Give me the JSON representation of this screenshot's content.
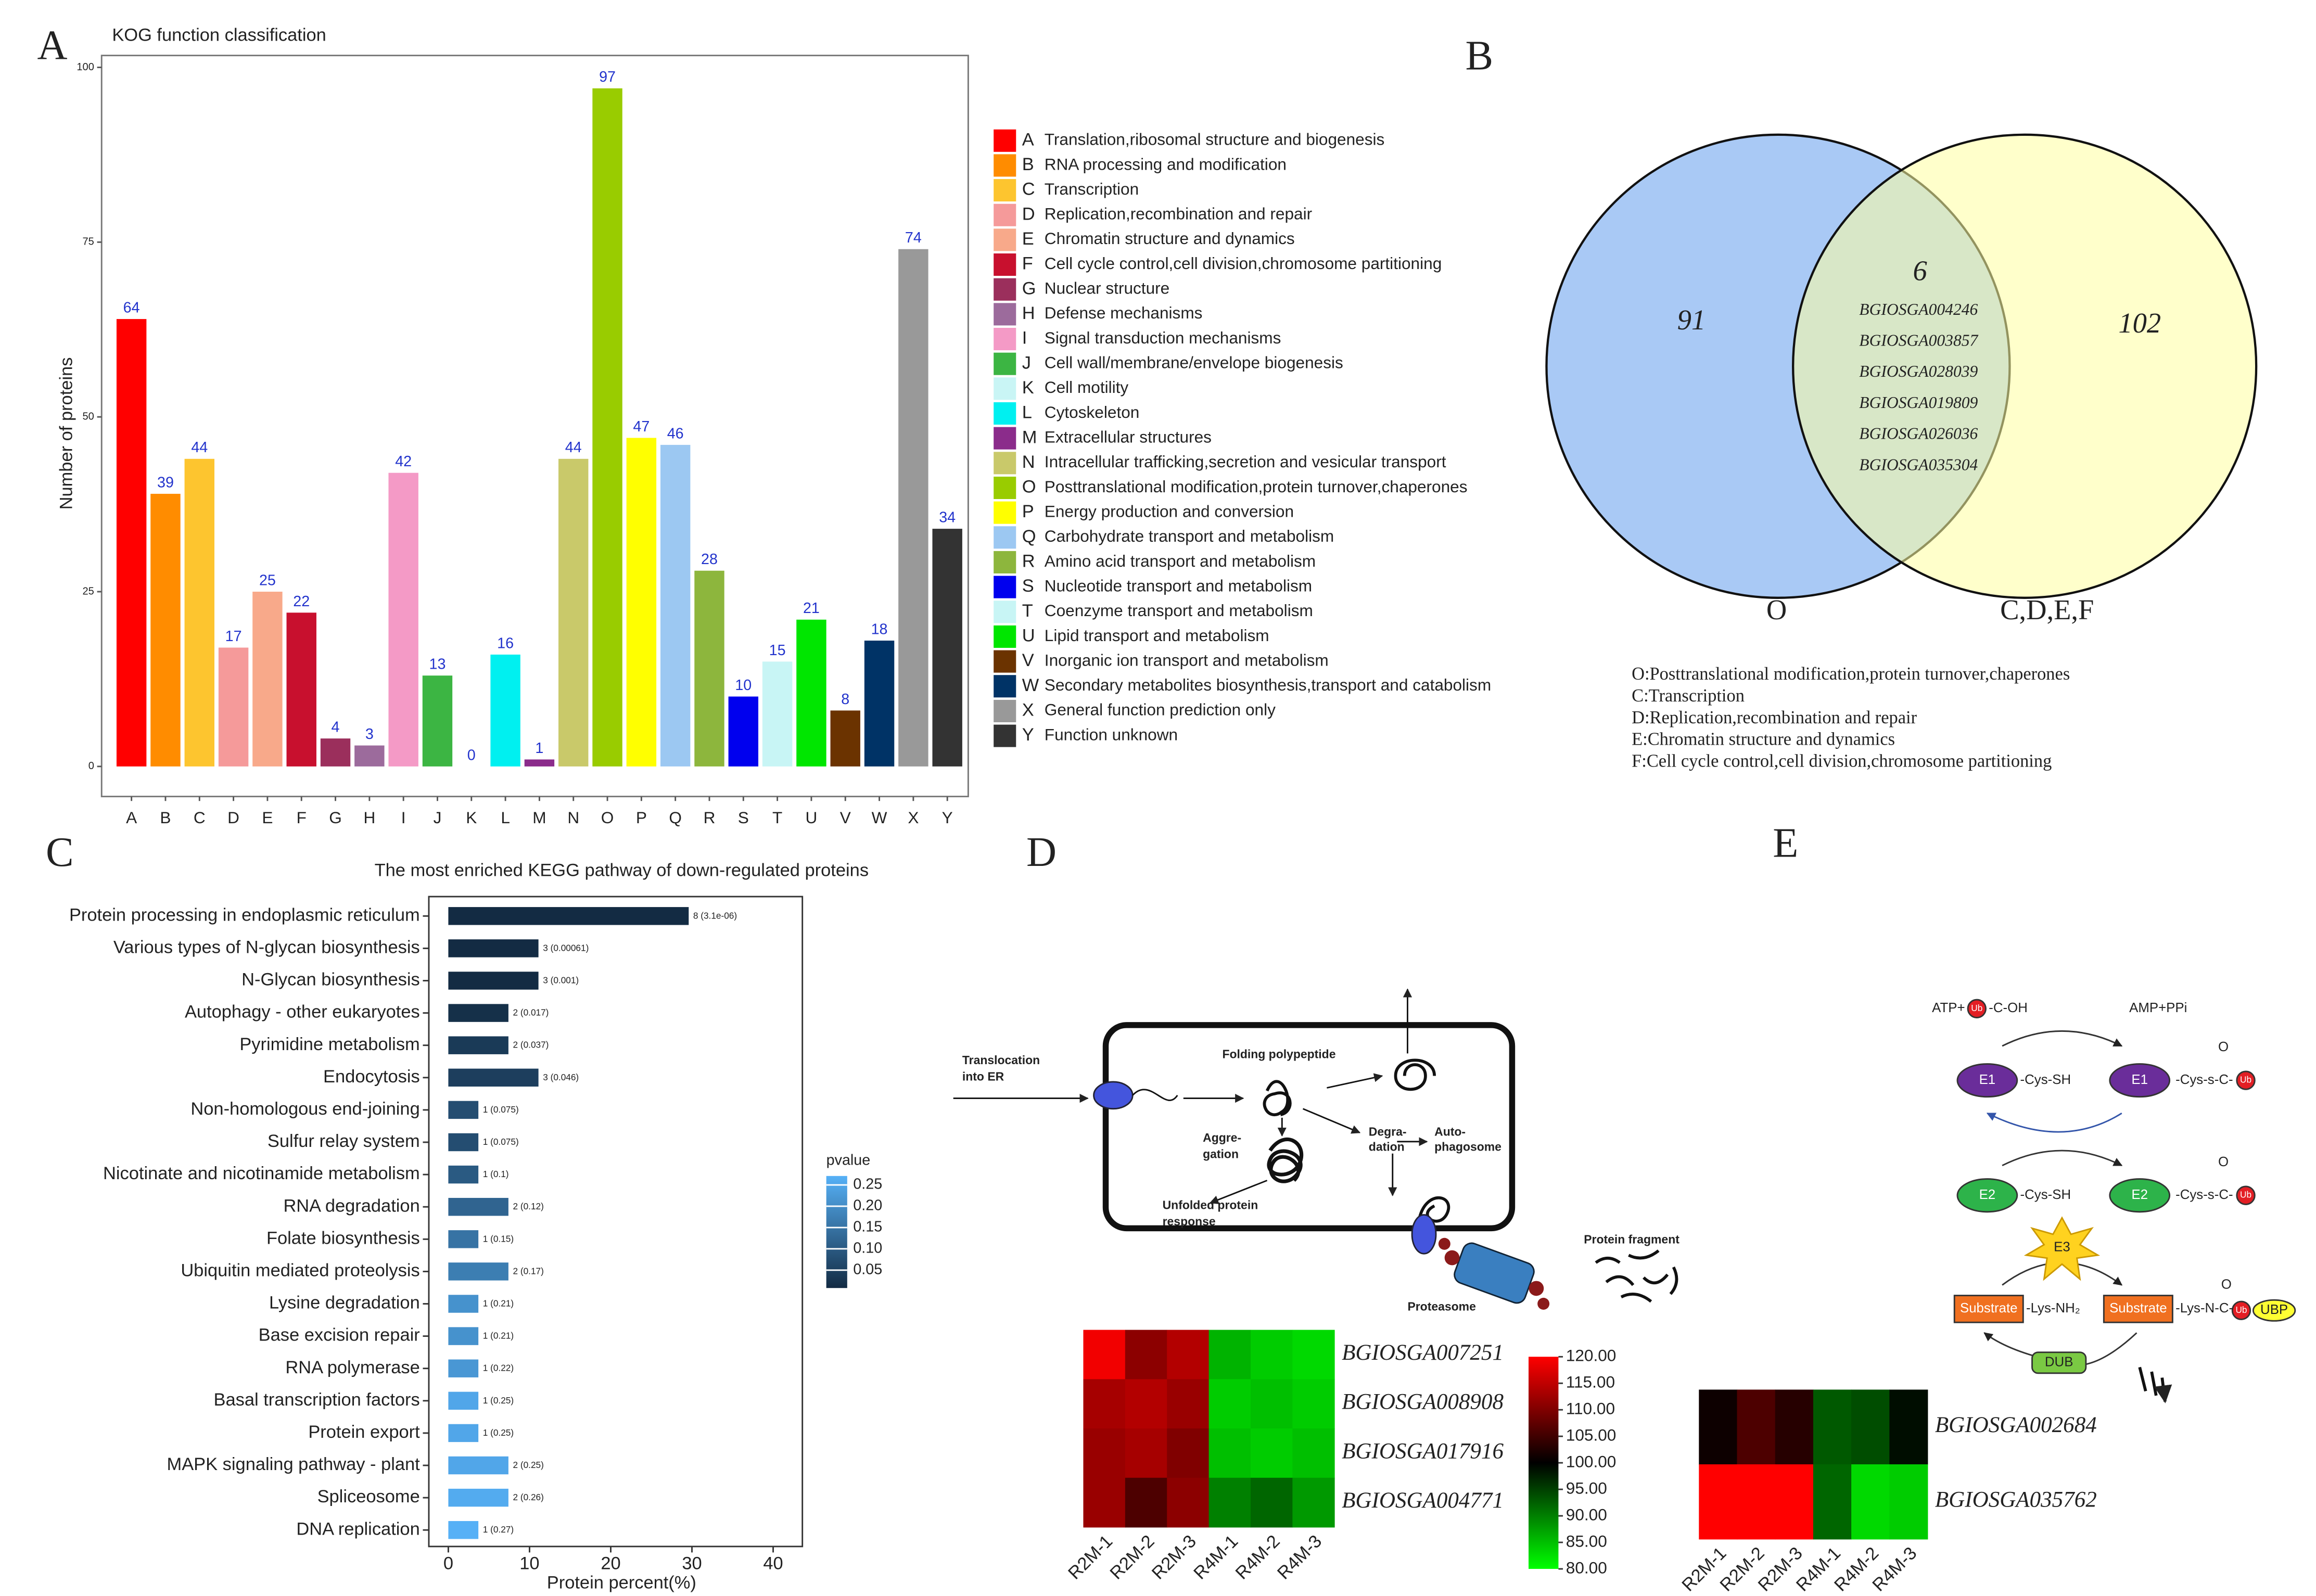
{
  "panel_labels": [
    "A",
    "B",
    "C",
    "D",
    "E"
  ],
  "chart_data": [
    {
      "type": "bar",
      "title": "KOG function classification",
      "ylabel": "Number of proteins",
      "categories": [
        "A",
        "B",
        "C",
        "D",
        "E",
        "F",
        "G",
        "H",
        "I",
        "J",
        "K",
        "L",
        "M",
        "N",
        "O",
        "P",
        "Q",
        "R",
        "S",
        "T",
        "U",
        "V",
        "W",
        "X",
        "Y"
      ],
      "values": [
        64,
        39,
        44,
        17,
        25,
        22,
        4,
        3,
        42,
        13,
        0,
        16,
        1,
        44,
        97,
        47,
        46,
        28,
        10,
        15,
        21,
        8,
        18,
        74,
        34
      ],
      "colors": [
        "#ff0000",
        "#ff8c00",
        "#fdc52f",
        "#f59a9a",
        "#f8a98a",
        "#c8102e",
        "#9b2f5c",
        "#9c6b9c",
        "#f49ac6",
        "#3cb543",
        "#c9f5f5",
        "#00f0f0",
        "#8b2c8b",
        "#c9c96a",
        "#99cc00",
        "#ffff00",
        "#9cc8f2",
        "#8db63d",
        "#0000ee",
        "#c8f5f5",
        "#00e600",
        "#6b3300",
        "#003366",
        "#999999",
        "#333333"
      ],
      "descriptions": [
        "Translation,ribosomal structure and biogenesis",
        "RNA processing and modification",
        "Transcription",
        "Replication,recombination and repair",
        "Chromatin structure and dynamics",
        "Cell cycle control,cell division,chromosome partitioning",
        "Nuclear structure",
        "Defense mechanisms",
        "Signal transduction mechanisms",
        "Cell wall/membrane/envelope biogenesis",
        "Cell motility",
        "Cytoskeleton",
        "Extracellular structures",
        "Intracellular trafficking,secretion and vesicular transport",
        "Posttranslational modification,protein turnover,chaperones",
        "Energy production and conversion",
        "Carbohydrate transport and metabolism",
        "Amino acid transport and metabolism",
        "Nucleotide transport and metabolism",
        "Coenzyme transport and metabolism",
        "Lipid transport and metabolism",
        "Inorganic ion transport and metabolism",
        "Secondary metabolites biosynthesis,transport and catabolism",
        "General function prediction only",
        "Function unknown"
      ],
      "ylim": [
        -4.3,
        101.7
      ],
      "yticks": [
        0,
        25,
        50,
        75,
        100
      ],
      "value_label_color": "#2233cc"
    },
    {
      "type": "venn",
      "sets": [
        "O",
        "C,D,E,F"
      ],
      "only_a": 91,
      "only_b": 102,
      "both": 6,
      "shared_items": [
        "BGIOSGA004246",
        "BGIOSGA003857",
        "BGIOSGA028039",
        "BGIOSGA019809",
        "BGIOSGA026036",
        "BGIOSGA035304"
      ],
      "colors": [
        "#a9c9f5",
        "#ffffa0"
      ],
      "notes": [
        "O:Posttranslational modification,protein turnover,chaperones",
        "C:Transcription",
        "D:Replication,recombination and repair",
        "E:Chromatin structure and dynamics",
        "F:Cell cycle control,cell division,chromosome partitioning"
      ]
    },
    {
      "type": "hbar",
      "title": "The most enriched KEGG pathway of down-regulated proteins",
      "xlabel": "Protein percent(%)",
      "categories": [
        "Protein processing in endoplasmic reticulum",
        "Various types of N-glycan biosynthesis",
        "N-Glycan biosynthesis",
        "Autophagy - other eukaryotes",
        "Pyrimidine metabolism",
        "Endocytosis",
        "Non-homologous end-joining",
        "Sulfur relay system",
        "Nicotinate and nicotinamide metabolism",
        "RNA degradation",
        "Folate biosynthesis",
        "Ubiquitin mediated proteolysis",
        "Lysine degradation",
        "Base excision repair",
        "RNA polymerase",
        "Basal transcription factors",
        "Protein export",
        "MAPK signaling pathway - plant",
        "Spliceosome",
        "DNA replication"
      ],
      "values": [
        29.6,
        11.1,
        11.1,
        7.4,
        7.4,
        11.1,
        3.7,
        3.7,
        3.7,
        7.4,
        3.7,
        7.4,
        3.7,
        3.7,
        3.7,
        3.7,
        3.7,
        7.4,
        7.4,
        3.7
      ],
      "counts": [
        8,
        3,
        3,
        2,
        2,
        3,
        1,
        1,
        1,
        2,
        1,
        2,
        1,
        1,
        1,
        1,
        1,
        2,
        2,
        1
      ],
      "pvalue": [
        3.1e-06,
        0.00061,
        0.001,
        0.017,
        0.037,
        0.046,
        0.075,
        0.075,
        0.1,
        0.12,
        0.15,
        0.17,
        0.21,
        0.21,
        0.22,
        0.25,
        0.25,
        0.25,
        0.26,
        0.27
      ],
      "pvalue_labels": [
        "(3.1e-06)",
        "(0.00061)",
        "(0.001)",
        "(0.017)",
        "(0.037)",
        "(0.046)",
        "(0.075)",
        "(0.075)",
        "(0.1)",
        "(0.12)",
        "(0.15)",
        "(0.17)",
        "(0.21)",
        "(0.21)",
        "(0.22)",
        "(0.25)",
        "(0.25)",
        "(0.25)",
        "(0.26)",
        "(0.27)"
      ],
      "xlim": [
        -2.4,
        43.6
      ],
      "xticks": [
        0,
        10,
        20,
        30,
        40
      ],
      "colorbar": {
        "title": "pvalue",
        "clim": [
          0.008,
          0.271
        ],
        "ticks": [
          {
            "value": 0.25,
            "label": "0.25"
          },
          {
            "value": 0.2,
            "label": "0.20"
          },
          {
            "value": 0.15,
            "label": "0.15"
          },
          {
            "value": 0.1,
            "label": "0.10"
          },
          {
            "value": 0.05,
            "label": "0.05"
          }
        ],
        "colors": [
          "#132b43",
          "#56b1f7"
        ]
      }
    },
    {
      "type": "heatmap",
      "rows": [
        "BGIOSGA007251",
        "BGIOSGA008908",
        "BGIOSGA017916",
        "BGIOSGA004771"
      ],
      "columns": [
        "R2M-1",
        "R2M-2",
        "R2M-3",
        "R4M-1",
        "R4M-2",
        "R4M-3"
      ],
      "values": [
        [
          119,
          111,
          114,
          86,
          84,
          83
        ],
        [
          113,
          114,
          112,
          84,
          85,
          84
        ],
        [
          112,
          113,
          110,
          85,
          84,
          85
        ],
        [
          112,
          106,
          111,
          90,
          92,
          88
        ]
      ],
      "clim": [
        80,
        120
      ],
      "colors": [
        "#00ff00",
        "#000000",
        "#ff0000"
      ],
      "cticks": [
        {
          "value": 120,
          "label": "120.00"
        },
        {
          "value": 115,
          "label": "115.00"
        },
        {
          "value": 110,
          "label": "110.00"
        },
        {
          "value": 105,
          "label": "105.00"
        },
        {
          "value": 100,
          "label": "100.00"
        },
        {
          "value": 95,
          "label": "95.00"
        },
        {
          "value": 90,
          "label": "90.00"
        },
        {
          "value": 85,
          "label": "85.00"
        },
        {
          "value": 80,
          "label": "80.00"
        }
      ]
    },
    {
      "type": "heatmap",
      "rows": [
        "BGIOSGA002684",
        "BGIOSGA035762"
      ],
      "columns": [
        "R2M-1",
        "R2M-2",
        "R2M-3",
        "R4M-1",
        "R4M-2",
        "R4M-3"
      ],
      "values": [
        [
          101,
          106,
          103,
          93,
          94,
          99
        ],
        [
          120,
          120,
          120,
          92,
          83,
          84
        ]
      ],
      "clim": [
        80,
        120
      ],
      "colors": [
        "#00ff00",
        "#000000",
        "#ff0000"
      ]
    }
  ],
  "diagrams": {
    "D": {
      "labels": [
        "Translocation",
        "into ER",
        "Folding polypeptide",
        "Aggre-",
        "gation",
        "Degra-",
        "dation",
        "Auto-",
        "phagosome",
        "Unfolded  protein",
        "response",
        "Protein fragment",
        "Proteasome"
      ]
    },
    "E": {
      "labels": [
        "ATP+",
        "Ub",
        "-C-OH",
        "AMP+PPi",
        "E1",
        "-Cys-SH",
        "-Cys-s-C-",
        "E2",
        "E3",
        "Substrate",
        "-Lys-NH₂",
        "-Lys-N-C-",
        "UBP",
        "DUB",
        "O"
      ]
    }
  }
}
